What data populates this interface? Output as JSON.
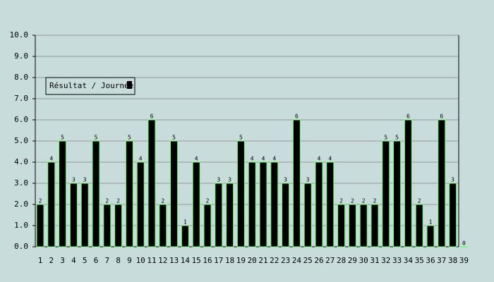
{
  "chart_data": {
    "type": "bar",
    "categories": [
      "1",
      "2",
      "3",
      "4",
      "5",
      "6",
      "7",
      "8",
      "9",
      "10",
      "11",
      "12",
      "13",
      "14",
      "15",
      "16",
      "17",
      "18",
      "19",
      "20",
      "21",
      "22",
      "23",
      "24",
      "25",
      "26",
      "27",
      "28",
      "29",
      "30",
      "31",
      "32",
      "33",
      "34",
      "35",
      "36",
      "37",
      "38",
      "39"
    ],
    "series": [
      {
        "name": "Résultat / Journée",
        "color": "#000000",
        "edge_color": "#66ff66",
        "values": [
          2,
          4,
          5,
          3,
          3,
          5,
          2,
          2,
          5,
          4,
          6,
          2,
          5,
          1,
          4,
          2,
          3,
          3,
          5,
          4,
          4,
          4,
          3,
          6,
          3,
          4,
          4,
          2,
          2,
          2,
          2,
          5,
          5,
          6,
          2,
          1,
          6,
          3,
          0
        ]
      }
    ],
    "ylim": [
      0,
      10
    ],
    "yticks": [
      {
        "value": 0,
        "label": "0.0"
      },
      {
        "value": 1,
        "label": "1.0"
      },
      {
        "value": 2,
        "label": "2.0"
      },
      {
        "value": 3,
        "label": "3.0"
      },
      {
        "value": 4,
        "label": "4.0"
      },
      {
        "value": 5,
        "label": "5.0"
      },
      {
        "value": 6,
        "label": "6.0"
      },
      {
        "value": 7,
        "label": "7.0"
      },
      {
        "value": 8,
        "label": "8.0"
      },
      {
        "value": 9,
        "label": "9.0"
      },
      {
        "value": 10,
        "label": "10.0"
      }
    ],
    "grid": true
  }
}
